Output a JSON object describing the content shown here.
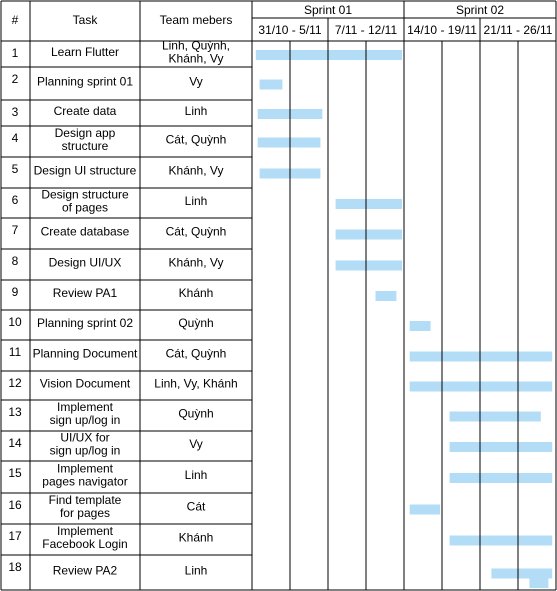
{
  "header": {
    "num": "#",
    "task": "Task",
    "members": "Team mebers",
    "sprints": [
      "Sprint 01",
      "Sprint 02"
    ],
    "weeks": [
      "31/10 - 5/11",
      "7/11 - 12/11",
      "14/10 - 19/11",
      "21/11 - 26/11"
    ]
  },
  "bar_color": "#b3dcf7",
  "rows": [
    {
      "num": "1",
      "task": [
        "Learn Flutter"
      ],
      "members": [
        "Linh, Quỳnh,",
        "Khánh, Vy"
      ],
      "start": 0.1,
      "end": 3.95
    },
    {
      "num": "2",
      "task": [
        "Planning sprint 01"
      ],
      "members": [
        "Vy"
      ],
      "start": 0.2,
      "end": 0.8
    },
    {
      "num": "3",
      "task": [
        "Create data"
      ],
      "members": [
        "Linh"
      ],
      "start": 0.15,
      "end": 1.85
    },
    {
      "num": "4",
      "task": [
        "Design app",
        "structure"
      ],
      "members": [
        "Cát, Quỳnh"
      ],
      "start": 0.15,
      "end": 1.8
    },
    {
      "num": "5",
      "task": [
        "Design UI structure"
      ],
      "members": [
        "Khánh, Vy"
      ],
      "start": 0.2,
      "end": 1.8
    },
    {
      "num": "6",
      "task": [
        "Design structure",
        "of pages"
      ],
      "members": [
        "Linh"
      ],
      "start": 2.2,
      "end": 3.95
    },
    {
      "num": "7",
      "task": [
        "Create database"
      ],
      "members": [
        "Cát, Quỳnh"
      ],
      "start": 2.2,
      "end": 3.95
    },
    {
      "num": "8",
      "task": [
        "Design UI/UX"
      ],
      "members": [
        "Khánh, Vy"
      ],
      "start": 2.2,
      "end": 3.95
    },
    {
      "num": "9",
      "task": [
        "Review PA1"
      ],
      "members": [
        "Khánh"
      ],
      "start": 3.25,
      "end": 3.8
    },
    {
      "num": "10",
      "task": [
        "Planning sprint 02"
      ],
      "members": [
        "Quỳnh"
      ],
      "start": 4.15,
      "end": 4.7
    },
    {
      "num": "11",
      "task": [
        "Planning Document"
      ],
      "members": [
        "Cát, Quỳnh"
      ],
      "start": 4.15,
      "end": 7.9
    },
    {
      "num": "12",
      "task": [
        "Vision Document"
      ],
      "members": [
        "Linh, Vy, Khánh"
      ],
      "start": 4.15,
      "end": 7.9
    },
    {
      "num": "13",
      "task": [
        "Implement",
        "sign up/log in"
      ],
      "members": [
        "Quỳnh"
      ],
      "start": 5.2,
      "end": 7.6
    },
    {
      "num": "14",
      "task": [
        "UI/UX for",
        "sign up/log in"
      ],
      "members": [
        "Vy"
      ],
      "start": 5.2,
      "end": 7.9
    },
    {
      "num": "15",
      "task": [
        "Implement",
        "pages navigator"
      ],
      "members": [
        "Linh"
      ],
      "start": 5.2,
      "end": 7.9
    },
    {
      "num": "16",
      "task": [
        "Find template",
        "for pages"
      ],
      "members": [
        "Cát"
      ],
      "start": 4.15,
      "end": 4.95
    },
    {
      "num": "17",
      "task": [
        "Implement",
        "Facebook Login"
      ],
      "members": [
        "Khánh"
      ],
      "start": 5.2,
      "end": 7.9
    },
    {
      "num": "18",
      "task": [
        "Review PA2"
      ],
      "members": [
        "Linh"
      ],
      "start": 6.3,
      "end": 7.9
    }
  ],
  "extra_bars": [
    {
      "row": "18",
      "start": 7.3,
      "end": 7.8
    }
  ]
}
